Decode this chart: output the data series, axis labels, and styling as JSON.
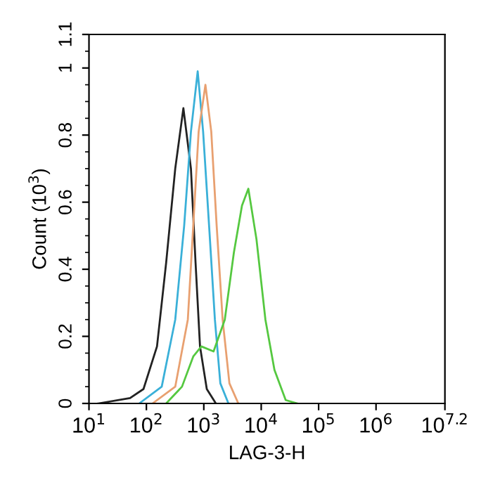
{
  "chart_data": {
    "type": "line",
    "xlabel": "LAG-3-H",
    "ylabel": "Count (10$^{3}$)",
    "log": "x",
    "grid": false,
    "legend": false,
    "marker": "none",
    "line_style": "solid",
    "xlim": [
      10,
      15848932
    ],
    "xticks": [
      {
        "value": 10,
        "label": "10$^{1}$"
      },
      {
        "value": 100,
        "label": "10$^{2}$"
      },
      {
        "value": 1000,
        "label": "10$^{3}$"
      },
      {
        "value": 10000,
        "label": "10$^{4}$"
      },
      {
        "value": 100000,
        "label": "10$^{5}$"
      },
      {
        "value": 1000000,
        "label": "10$^{6}$"
      },
      {
        "value": 15848932,
        "label": "10$^{7.2}$"
      }
    ],
    "ylim": [
      0,
      1.1
    ],
    "yticks": [
      0,
      0.2,
      0.4,
      0.6,
      0.8,
      1,
      1.1
    ],
    "series": [
      {
        "color": "#222222",
        "x": [
          14.6,
          51.9,
          89,
          153,
          221,
          318,
          441,
          597,
          718,
          859,
          1127,
          1622
        ],
        "values": [
          0,
          0.016,
          0.043,
          0.17,
          0.42,
          0.7,
          0.88,
          0.7,
          0.42,
          0.17,
          0.043,
          0
        ]
      },
      {
        "color": "#3ab0d8",
        "x": [
          75,
          185,
          318,
          455,
          597,
          783,
          973,
          1236,
          1560,
          1941,
          2685
        ],
        "values": [
          0,
          0.05,
          0.25,
          0.53,
          0.81,
          0.99,
          0.81,
          0.53,
          0.25,
          0.06,
          0
        ]
      },
      {
        "color": "#e8a070",
        "x": [
          128,
          318,
          527,
          655,
          813,
          1067,
          1349,
          1675,
          2128,
          2794,
          3990
        ],
        "values": [
          0,
          0.05,
          0.25,
          0.53,
          0.81,
          0.95,
          0.81,
          0.53,
          0.25,
          0.06,
          0
        ]
      },
      {
        "color": "#55c840",
        "x": [
          221,
          417,
          655,
          908,
          1479,
          2323,
          3342,
          4624,
          5970,
          8260,
          11830,
          17000,
          26700,
          42200
        ],
        "values": [
          0,
          0.05,
          0.14,
          0.17,
          0.155,
          0.25,
          0.45,
          0.59,
          0.64,
          0.49,
          0.25,
          0.1,
          0.01,
          0
        ]
      }
    ]
  }
}
